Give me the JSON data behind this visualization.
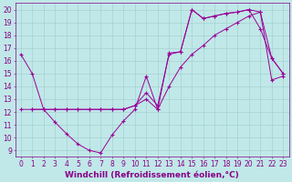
{
  "xlabel": "Windchill (Refroidissement éolien,°C)",
  "bg_color": "#c0e8e8",
  "line_color": "#990099",
  "xlim": [
    -0.5,
    23.5
  ],
  "ylim": [
    8.5,
    20.5
  ],
  "xticks": [
    0,
    1,
    2,
    3,
    4,
    5,
    6,
    7,
    8,
    9,
    10,
    11,
    12,
    13,
    14,
    15,
    16,
    17,
    18,
    19,
    20,
    21,
    22,
    23
  ],
  "yticks": [
    9,
    10,
    11,
    12,
    13,
    14,
    15,
    16,
    17,
    18,
    19,
    20
  ],
  "grid_color": "#a0cccc",
  "font_color": "#880088",
  "tick_fontsize": 5.5,
  "xlabel_fontsize": 6.5,
  "series1_x": [
    0,
    1,
    2,
    3,
    4,
    5,
    6,
    7,
    8,
    9,
    10,
    11,
    12,
    13,
    14,
    15,
    16,
    17,
    18,
    19,
    20,
    21,
    22,
    23
  ],
  "series1_y": [
    16.5,
    15.0,
    12.2,
    11.2,
    10.3,
    9.5,
    9.0,
    8.8,
    10.2,
    11.3,
    12.2,
    14.8,
    12.2,
    16.6,
    16.7,
    20.0,
    19.3,
    19.5,
    19.7,
    19.8,
    20.0,
    18.5,
    16.2,
    15.0
  ],
  "series2_x": [
    0,
    1,
    2,
    3,
    4,
    5,
    6,
    7,
    8,
    9,
    10,
    11,
    12,
    13,
    14,
    15,
    16,
    17,
    18,
    19,
    20,
    21,
    22,
    23
  ],
  "series2_y": [
    12.2,
    12.2,
    12.2,
    12.2,
    12.2,
    12.2,
    12.2,
    12.2,
    12.2,
    12.2,
    12.5,
    13.0,
    12.2,
    14.0,
    15.5,
    16.5,
    17.2,
    18.0,
    18.5,
    19.0,
    19.5,
    19.8,
    14.5,
    14.8
  ],
  "series3_x": [
    1,
    2,
    3,
    4,
    5,
    6,
    7,
    8,
    9,
    10,
    11,
    12,
    13,
    14,
    15,
    16,
    17,
    18,
    19,
    20,
    21,
    22,
    23
  ],
  "series3_y": [
    12.2,
    12.2,
    12.2,
    12.2,
    12.2,
    12.2,
    12.2,
    12.2,
    12.2,
    12.5,
    13.5,
    12.5,
    16.5,
    16.7,
    20.0,
    19.3,
    19.5,
    19.7,
    19.8,
    20.0,
    19.8,
    16.2,
    15.0
  ]
}
